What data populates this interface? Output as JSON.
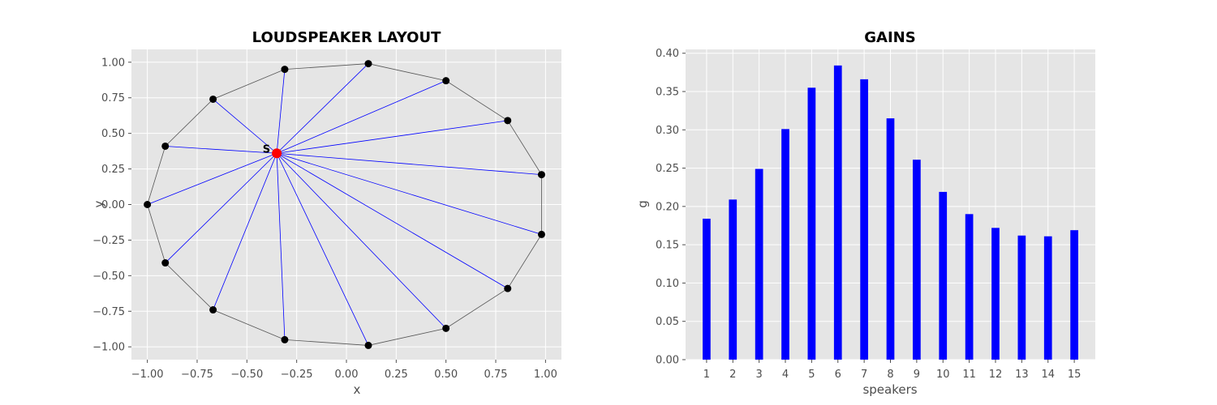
{
  "chart_data": [
    {
      "type": "scatter",
      "title": "LOUDSPEAKER LAYOUT",
      "xlabel": "x",
      "ylabel": "y",
      "xlim": [
        -1.08,
        1.08
      ],
      "ylim": [
        -1.09,
        1.09
      ],
      "x_ticks": [
        -1.0,
        -0.75,
        -0.5,
        -0.25,
        0.0,
        0.25,
        0.5,
        0.75,
        1.0
      ],
      "y_ticks": [
        -1.0,
        -0.75,
        -0.5,
        -0.25,
        0.0,
        0.25,
        0.5,
        0.75,
        1.0
      ],
      "x_tick_labels": [
        "−1.00",
        "−0.75",
        "−0.50",
        "−0.25",
        "0.00",
        "0.25",
        "0.50",
        "0.75",
        "1.00"
      ],
      "y_tick_labels": [
        "−1.00",
        "−0.75",
        "−0.50",
        "−0.25",
        "0.00",
        "0.25",
        "0.50",
        "0.75",
        "1.00"
      ],
      "grid": true,
      "speakers": [
        {
          "x": -1.0,
          "y": 0.0
        },
        {
          "x": -0.91,
          "y": -0.41
        },
        {
          "x": -0.67,
          "y": -0.74
        },
        {
          "x": -0.31,
          "y": -0.95
        },
        {
          "x": 0.11,
          "y": -0.99
        },
        {
          "x": 0.5,
          "y": -0.87
        },
        {
          "x": 0.81,
          "y": -0.59
        },
        {
          "x": 0.98,
          "y": -0.21
        },
        {
          "x": 0.98,
          "y": 0.21
        },
        {
          "x": 0.81,
          "y": 0.59
        },
        {
          "x": 0.5,
          "y": 0.87
        },
        {
          "x": 0.11,
          "y": 0.99
        },
        {
          "x": -0.31,
          "y": 0.95
        },
        {
          "x": -0.67,
          "y": 0.74
        },
        {
          "x": -0.91,
          "y": 0.41
        }
      ],
      "source": {
        "label": "S",
        "x": -0.35,
        "y": 0.36
      },
      "colors": {
        "speaker": "#000000",
        "source": "#ff0000",
        "ray": "#0000ff",
        "outline": "#555555"
      }
    },
    {
      "type": "bar",
      "title": "GAINS",
      "xlabel": "speakers",
      "ylabel": "g",
      "categories": [
        "1",
        "2",
        "3",
        "4",
        "5",
        "6",
        "7",
        "8",
        "9",
        "10",
        "11",
        "12",
        "13",
        "14",
        "15"
      ],
      "values": [
        0.184,
        0.209,
        0.249,
        0.301,
        0.355,
        0.384,
        0.366,
        0.315,
        0.261,
        0.219,
        0.19,
        0.172,
        0.162,
        0.161,
        0.169
      ],
      "ylim": [
        0,
        0.405
      ],
      "y_ticks": [
        0.0,
        0.05,
        0.1,
        0.15,
        0.2,
        0.25,
        0.3,
        0.35,
        0.4
      ],
      "y_tick_labels": [
        "0.00",
        "0.05",
        "0.10",
        "0.15",
        "0.20",
        "0.25",
        "0.30",
        "0.35",
        "0.40"
      ],
      "grid": true,
      "colors": {
        "bar": "#0000ff"
      }
    }
  ],
  "style": {
    "axes_bg": "#e5e5e5",
    "grid": "#ffffff",
    "tick_color": "#4d4d4d"
  }
}
